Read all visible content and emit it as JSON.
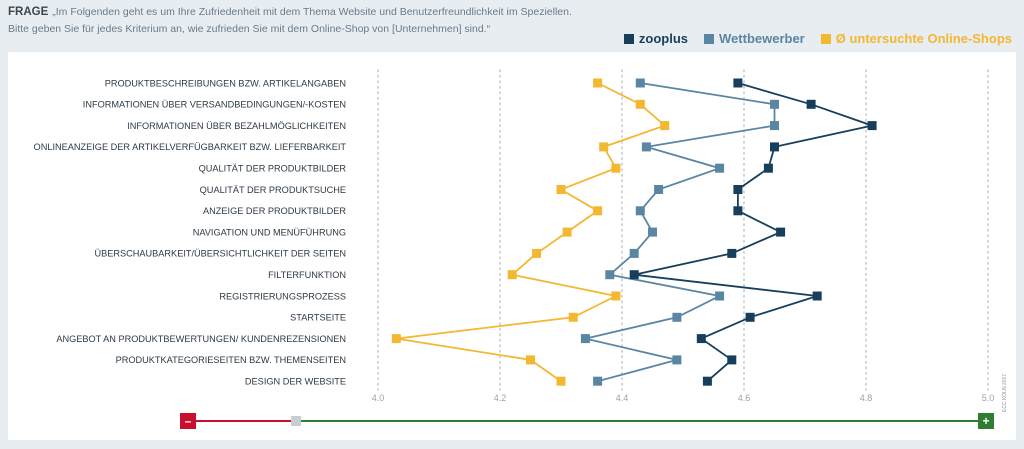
{
  "question": {
    "label": "FRAGE",
    "line1": "„Im Folgenden geht es um Ihre Zufriedenheit mit dem Thema Website und Benutzerfreundlichkeit im Speziellen.",
    "line2": "Bitte geben Sie für jedes Kriterium an, wie zufrieden Sie mit dem Online-Shop von [Unternehmen] sind.“"
  },
  "legend": [
    {
      "label": "zooplus",
      "color": "#173f5c"
    },
    {
      "label": "Wettbewerber",
      "color": "#5a86a3"
    },
    {
      "label": "Ø untersuchte Online-Shops",
      "color": "#f4b731"
    }
  ],
  "scale": {
    "minus": "–",
    "plus": "+",
    "minus_color": "#c8102e",
    "plus_color": "#2e7d32"
  },
  "copyright": "ECC KÖLN 2017",
  "chart_data": {
    "type": "line",
    "orientation": "horizontal",
    "xlim": [
      4.0,
      5.0
    ],
    "xticks": [
      "4.0",
      "4.2",
      "4.4",
      "4.6",
      "4.8",
      "5.0"
    ],
    "grid": "vertical dotted",
    "legend_position": "top-right",
    "categories": [
      "PRODUKTBESCHREIBUNGEN BZW. ARTIKELANGABEN",
      "INFORMATIONEN ÜBER VERSANDBEDINGUNGEN/-KOSTEN",
      "INFORMATIONEN ÜBER BEZAHLMÖGLICHKEITEN",
      "ONLINEANZEIGE DER ARTIKELVERFÜGBARKEIT BZW. LIEFERBARKEIT",
      "QUALITÄT DER PRODUKTBILDER",
      "QUALITÄT DER PRODUKTSUCHE",
      "ANZEIGE DER PRODUKTBILDER",
      "NAVIGATION UND MENÜFÜHRUNG",
      "ÜBERSCHAUBARKEIT/ÜBERSICHTLICHKEIT DER SEITEN",
      "FILTERFUNKTION",
      "REGISTRIERUNGSPROZESS",
      "STARTSEITE",
      "ANGEBOT AN PRODUKTBEWERTUNGEN/ KUNDENREZENSIONEN",
      "PRODUKTKATEGORIESEITEN BZW. THEMENSEITEN",
      "DESIGN DER WEBSITE"
    ],
    "series": [
      {
        "name": "zooplus",
        "color": "#173f5c",
        "values": [
          4.59,
          4.71,
          4.81,
          4.65,
          4.64,
          4.59,
          4.59,
          4.66,
          4.58,
          4.42,
          4.72,
          4.61,
          4.53,
          4.58,
          4.54
        ]
      },
      {
        "name": "Wettbewerber",
        "color": "#5a86a3",
        "values": [
          4.43,
          4.65,
          4.65,
          4.44,
          4.56,
          4.46,
          4.43,
          4.45,
          4.42,
          4.38,
          4.56,
          4.49,
          4.34,
          4.49,
          4.36
        ]
      },
      {
        "name": "Ø untersuchte Online-Shops",
        "color": "#f4b731",
        "values": [
          4.36,
          4.43,
          4.47,
          4.37,
          4.39,
          4.3,
          4.36,
          4.31,
          4.26,
          4.22,
          4.39,
          4.32,
          4.03,
          4.25,
          4.3
        ]
      }
    ]
  }
}
